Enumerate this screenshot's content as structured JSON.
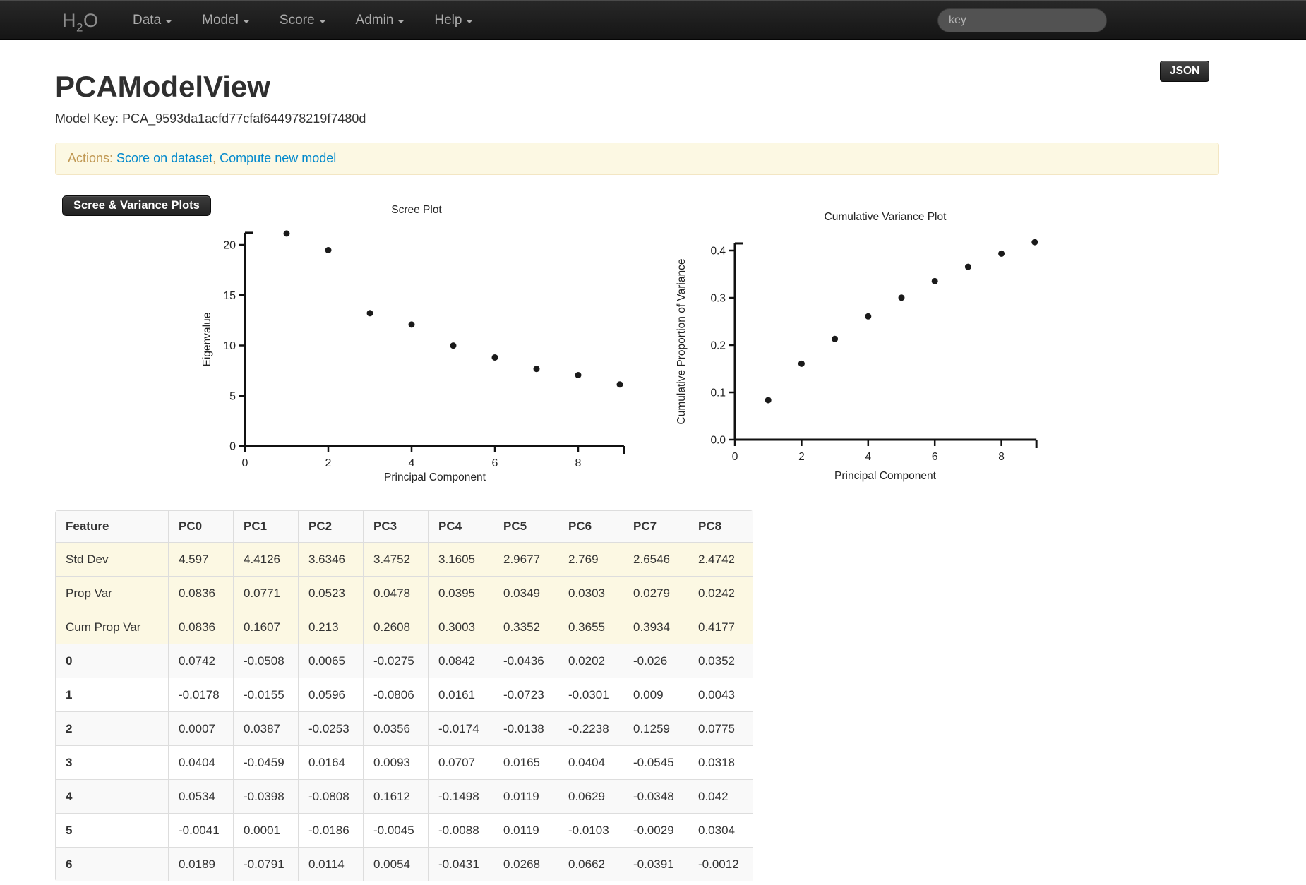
{
  "navbar": {
    "brand": {
      "h": "H",
      "sub": "2",
      "o": "O"
    },
    "items": [
      {
        "label": "Data"
      },
      {
        "label": "Model"
      },
      {
        "label": "Score"
      },
      {
        "label": "Admin"
      },
      {
        "label": "Help"
      }
    ],
    "search_placeholder": "key"
  },
  "header": {
    "title": "PCAModelView",
    "json_button": "JSON",
    "model_key_label": "Model Key:",
    "model_key": "PCA_9593da1acfd77cfaf644978219f7480d"
  },
  "actions": {
    "label": "Actions:",
    "separator": ", ",
    "links": [
      "Score on dataset",
      "Compute new model"
    ]
  },
  "section_button": "Scree & Variance Plots",
  "colors": {
    "link_blue": "#0088cc",
    "warning_text": "#c09853",
    "warning_bg": "#fcf8e3",
    "table_summary_bg": "#fcf8e3",
    "table_stripe_bg": "#f9f9f9",
    "dark_button_bg": "#2b2b2b"
  },
  "chart_data": [
    {
      "type": "scatter",
      "title": "Scree Plot",
      "xlabel": "Principal Component",
      "ylabel": "Eigenvalue",
      "x": [
        1,
        2,
        3,
        4,
        5,
        6,
        7,
        8,
        9
      ],
      "y": [
        21.13,
        19.47,
        13.21,
        12.08,
        9.99,
        8.81,
        7.67,
        7.05,
        6.12
      ],
      "xticks": [
        0,
        2,
        4,
        6,
        8
      ],
      "xticklabels": [
        "0",
        "2",
        "4",
        "6",
        "8"
      ],
      "yticks": [
        0,
        5,
        10,
        15,
        20
      ],
      "yticklabels": [
        "0",
        "5",
        "10",
        "15",
        "20"
      ],
      "xlim": [
        0,
        9.1
      ],
      "ylim": [
        0,
        21.2
      ],
      "grid": false,
      "legend": "none"
    },
    {
      "type": "scatter",
      "title": "Cumulative Variance Plot",
      "xlabel": "Principal Component",
      "ylabel": "Cumulative Proportion of Variance",
      "x": [
        1,
        2,
        3,
        4,
        5,
        6,
        7,
        8,
        9
      ],
      "y": [
        0.0836,
        0.1607,
        0.213,
        0.2608,
        0.3003,
        0.3352,
        0.3655,
        0.3934,
        0.4177
      ],
      "xticks": [
        0,
        2,
        4,
        6,
        8
      ],
      "xticklabels": [
        "0",
        "2",
        "4",
        "6",
        "8"
      ],
      "yticks": [
        0,
        0.1,
        0.2,
        0.3,
        0.4
      ],
      "yticklabels": [
        "0.0",
        "0.1",
        "0.2",
        "0.3",
        "0.4"
      ],
      "xlim": [
        0,
        9.05
      ],
      "ylim": [
        0,
        0.415
      ],
      "grid": false,
      "legend": "none"
    }
  ],
  "table": {
    "headers": [
      "Feature",
      "PC0",
      "PC1",
      "PC2",
      "PC3",
      "PC4",
      "PC5",
      "PC6",
      "PC7",
      "PC8"
    ],
    "rows": [
      {
        "label": "Std Dev",
        "type": "summary",
        "values": [
          "4.597",
          "4.4126",
          "3.6346",
          "3.4752",
          "3.1605",
          "2.9677",
          "2.769",
          "2.6546",
          "2.4742"
        ]
      },
      {
        "label": "Prop Var",
        "type": "summary",
        "values": [
          "0.0836",
          "0.0771",
          "0.0523",
          "0.0478",
          "0.0395",
          "0.0349",
          "0.0303",
          "0.0279",
          "0.0242"
        ]
      },
      {
        "label": "Cum Prop Var",
        "type": "summary",
        "values": [
          "0.0836",
          "0.1607",
          "0.213",
          "0.2608",
          "0.3003",
          "0.3352",
          "0.3655",
          "0.3934",
          "0.4177"
        ]
      },
      {
        "label": "0",
        "type": "feature",
        "values": [
          "0.0742",
          "-0.0508",
          "0.0065",
          "-0.0275",
          "0.0842",
          "-0.0436",
          "0.0202",
          "-0.026",
          "0.0352"
        ]
      },
      {
        "label": "1",
        "type": "feature",
        "values": [
          "-0.0178",
          "-0.0155",
          "0.0596",
          "-0.0806",
          "0.0161",
          "-0.0723",
          "-0.0301",
          "0.009",
          "0.0043"
        ]
      },
      {
        "label": "2",
        "type": "feature",
        "values": [
          "0.0007",
          "0.0387",
          "-0.0253",
          "0.0356",
          "-0.0174",
          "-0.0138",
          "-0.2238",
          "0.1259",
          "0.0775"
        ]
      },
      {
        "label": "3",
        "type": "feature",
        "values": [
          "0.0404",
          "-0.0459",
          "0.0164",
          "0.0093",
          "0.0707",
          "0.0165",
          "0.0404",
          "-0.0545",
          "0.0318"
        ]
      },
      {
        "label": "4",
        "type": "feature",
        "values": [
          "0.0534",
          "-0.0398",
          "-0.0808",
          "0.1612",
          "-0.1498",
          "0.0119",
          "0.0629",
          "-0.0348",
          "0.042"
        ]
      },
      {
        "label": "5",
        "type": "feature",
        "values": [
          "-0.0041",
          "0.0001",
          "-0.0186",
          "-0.0045",
          "-0.0088",
          "0.0119",
          "-0.0103",
          "-0.0029",
          "0.0304"
        ]
      },
      {
        "label": "6",
        "type": "feature",
        "values": [
          "0.0189",
          "-0.0791",
          "0.0114",
          "0.0054",
          "-0.0431",
          "0.0268",
          "0.0662",
          "-0.0391",
          "-0.0012"
        ]
      }
    ]
  }
}
